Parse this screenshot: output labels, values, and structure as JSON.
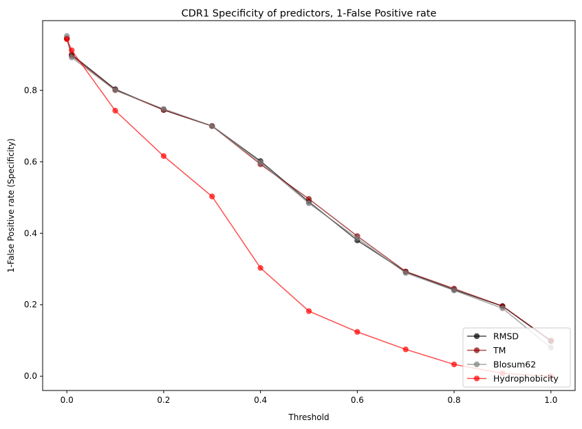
{
  "chart_data": {
    "type": "line",
    "title": "CDR1 Specificity of predictors, 1-False Positive rate",
    "xlabel": "Threshold",
    "ylabel": "1-False Positive rate (Specificity)",
    "xlim": [
      -0.05,
      1.05
    ],
    "ylim": [
      -0.04,
      0.995
    ],
    "xticks": [
      0.0,
      0.2,
      0.4,
      0.6,
      0.8,
      1.0
    ],
    "xtick_labels": [
      "0.0",
      "0.2",
      "0.4",
      "0.6",
      "0.8",
      "1.0"
    ],
    "yticks": [
      0.0,
      0.2,
      0.4,
      0.6,
      0.8
    ],
    "ytick_labels": [
      "0.0",
      "0.2",
      "0.4",
      "0.6",
      "0.8"
    ],
    "grid": false,
    "legend_position": "lower-right",
    "x": [
      0.0,
      0.01,
      0.1,
      0.2,
      0.3,
      0.4,
      0.5,
      0.6,
      0.7,
      0.8,
      0.9,
      1.0
    ],
    "series": [
      {
        "name": "RMSD",
        "color": "#000000",
        "values": [
          0.945,
          0.9,
          0.803,
          0.745,
          0.7,
          0.602,
          0.488,
          0.38,
          0.292,
          0.242,
          0.196,
          0.098
        ]
      },
      {
        "name": "TM",
        "color": "#8b0000",
        "values": [
          0.945,
          0.897,
          0.801,
          0.745,
          0.7,
          0.593,
          0.496,
          0.392,
          0.293,
          0.245,
          0.196,
          0.1
        ]
      },
      {
        "name": "Blosum62",
        "color": "#808080",
        "values": [
          0.952,
          0.892,
          0.8,
          0.748,
          0.7,
          0.598,
          0.484,
          0.386,
          0.289,
          0.24,
          0.19,
          0.08
        ]
      },
      {
        "name": "Hydrophobicity",
        "color": "#ff0000",
        "values": [
          0.943,
          0.912,
          0.743,
          0.616,
          0.503,
          0.303,
          0.182,
          0.124,
          0.075,
          0.033,
          0.008,
          0.0
        ]
      }
    ]
  }
}
